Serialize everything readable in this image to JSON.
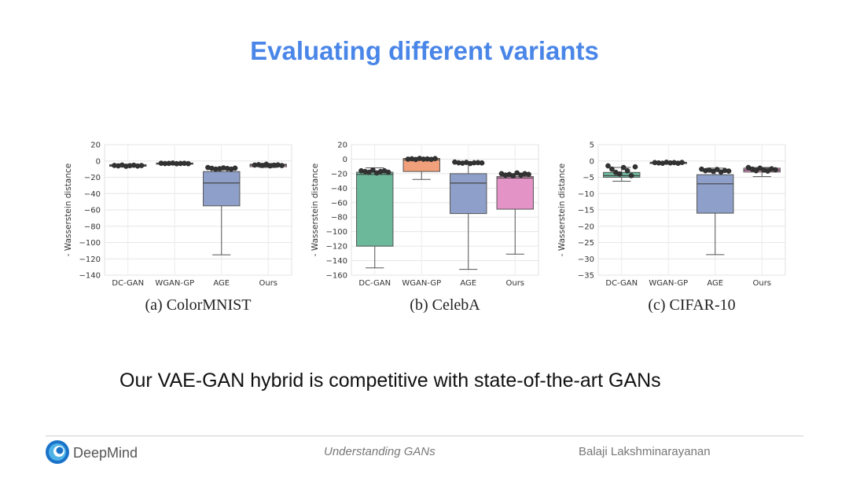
{
  "slide": {
    "title": "Evaluating different variants",
    "subtitle": "Our VAE-GAN hybrid is competitive with state-of-the-art GANs"
  },
  "footer": {
    "brand": "DeepMind",
    "center": "Understanding GANs",
    "author": "Balaji Lakshminarayanan"
  },
  "colors": {
    "title": "#4a86e8",
    "dcgan": "#6bb89b",
    "wgangp": "#f0a07a",
    "age": "#8e9fc9",
    "ours": "#e493c6"
  },
  "chart_data": [
    {
      "type": "box",
      "caption": "(a) ColorMNIST",
      "ylabel": "- Wasserstein distance",
      "ylim": [
        -140,
        20
      ],
      "yticks": [
        20,
        0,
        -20,
        -40,
        -60,
        -80,
        -100,
        -120,
        -140
      ],
      "categories": [
        "DC-GAN",
        "WGAN-GP",
        "AGE",
        "Ours"
      ],
      "boxes": [
        {
          "q1": -6.5,
          "median": -5.5,
          "q3": -4.5,
          "whislo": -7,
          "whishi": -4,
          "fill": "#6bb89b"
        },
        {
          "q1": -3.5,
          "median": -3,
          "q3": -2.5,
          "whislo": -4,
          "whishi": -2,
          "fill": "#f0a07a"
        },
        {
          "q1": -55,
          "median": -27,
          "q3": -13,
          "whislo": -115,
          "whishi": -8,
          "fill": "#8e9fc9"
        },
        {
          "q1": -7,
          "median": -5,
          "q3": -4,
          "whislo": -8,
          "whishi": -3,
          "fill": "#e493c6"
        }
      ],
      "points": [
        [
          -5.5,
          -6,
          -5,
          -6.5,
          -5.8,
          -5.2,
          -6.2,
          -5.6
        ],
        [
          -2.8,
          -3.2,
          -3,
          -2.6,
          -3.4,
          -3.1,
          -2.9,
          -3.3
        ],
        [
          -8,
          -9,
          -10,
          -9.5,
          -8.5,
          -9.2,
          -10,
          -8.8
        ],
        [
          -5,
          -4.5,
          -5.5,
          -4,
          -6,
          -5.2,
          -4.8,
          -5.6
        ]
      ]
    },
    {
      "type": "box",
      "caption": "(b) CelebA",
      "ylabel": "- Wasserstein distance",
      "ylim": [
        -160,
        20
      ],
      "yticks": [
        20,
        0,
        -20,
        -40,
        -60,
        -80,
        -100,
        -120,
        -140,
        -160
      ],
      "categories": [
        "DC-GAN",
        "WGAN-GP",
        "AGE",
        "Ours"
      ],
      "boxes": [
        {
          "q1": -120,
          "median": -21,
          "q3": -18,
          "whislo": -150,
          "whishi": -12,
          "fill": "#6bb89b"
        },
        {
          "q1": -17,
          "median": -1,
          "q3": 1,
          "whislo": -28,
          "whishi": 2,
          "fill": "#f0a07a"
        },
        {
          "q1": -75,
          "median": -33,
          "q3": -20,
          "whislo": -152,
          "whishi": -5,
          "fill": "#8e9fc9"
        },
        {
          "q1": -69,
          "median": -26,
          "q3": -24,
          "whislo": -131,
          "whishi": -20,
          "fill": "#e493c6"
        }
      ],
      "points": [
        [
          -16,
          -17,
          -18,
          -15,
          -19,
          -17,
          -16,
          -18
        ],
        [
          0,
          0.5,
          -0.5,
          1,
          0,
          0.3,
          -0.3,
          0.8
        ],
        [
          -4,
          -5,
          -5.5,
          -4.5,
          -6,
          -5,
          -4.8,
          -5.2
        ],
        [
          -20,
          -22,
          -21,
          -23,
          -19,
          -22,
          -20,
          -21
        ]
      ]
    },
    {
      "type": "box",
      "caption": "(c) CIFAR-10",
      "ylabel": "- Wasserstein distance",
      "ylim": [
        -35,
        5
      ],
      "yticks": [
        5,
        0,
        -5,
        -10,
        -15,
        -20,
        -25,
        -30,
        -35
      ],
      "categories": [
        "DC-GAN",
        "WGAN-GP",
        "AGE",
        "Ours"
      ],
      "boxes": [
        {
          "q1": -5,
          "median": -4.5,
          "q3": -3.5,
          "whislo": -6.2,
          "whishi": -2,
          "fill": "#6bb89b"
        },
        {
          "q1": -0.8,
          "median": -0.6,
          "q3": -0.4,
          "whislo": -0.9,
          "whishi": -0.3,
          "fill": "#f0a07a"
        },
        {
          "q1": -16,
          "median": -7,
          "q3": -4.2,
          "whislo": -28.7,
          "whishi": -2.2,
          "fill": "#8e9fc9"
        },
        {
          "q1": -3.4,
          "median": -2.8,
          "q3": -2.2,
          "whislo": -4.8,
          "whishi": -2,
          "fill": "#e493c6"
        }
      ],
      "points": [
        [
          -1.5,
          -2.5,
          -3.5,
          -4,
          -2,
          -3,
          -4.5,
          -1.8
        ],
        [
          -0.5,
          -0.6,
          -0.7,
          -0.4,
          -0.6,
          -0.5,
          -0.7,
          -0.45
        ],
        [
          -2.5,
          -3,
          -2.8,
          -3.2,
          -2.6,
          -3.4,
          -2.9,
          -3.1
        ],
        [
          -2,
          -2.5,
          -3,
          -2.2,
          -2.8,
          -3.1,
          -2.4,
          -2.7
        ]
      ]
    }
  ]
}
